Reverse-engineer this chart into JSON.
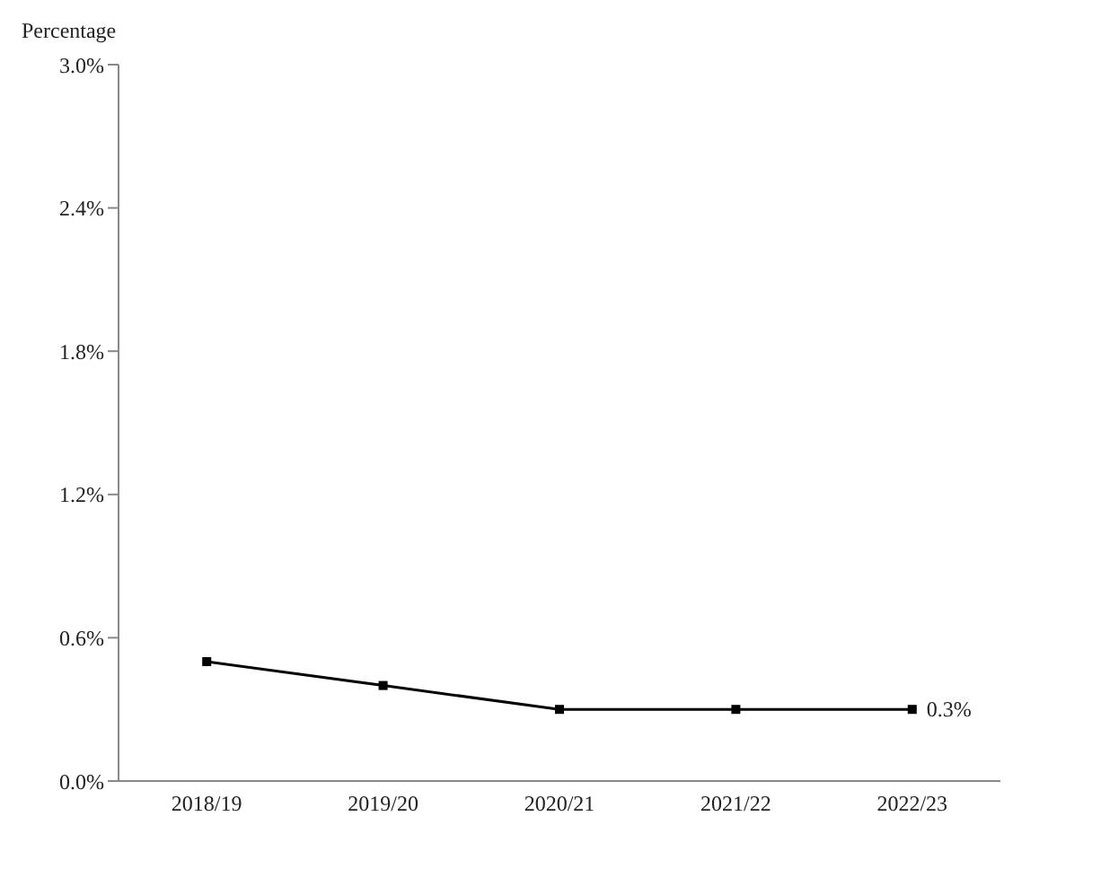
{
  "chart_data": {
    "type": "line",
    "ylabel": "Percentage",
    "categories": [
      "2018/19",
      "2019/20",
      "2020/21",
      "2021/22",
      "2022/23"
    ],
    "series": [
      {
        "color": "#000000",
        "values": [
          0.5,
          0.4,
          0.3,
          0.3,
          0.3
        ]
      }
    ],
    "ylim": [
      0,
      3
    ],
    "yticks": [
      {
        "value": 0,
        "label": "0.0%"
      },
      {
        "value": 0.6,
        "label": "0.6%"
      },
      {
        "value": 1.2,
        "label": "1.2%"
      },
      {
        "value": 1.8,
        "label": "1.8%"
      },
      {
        "value": 2.4,
        "label": "2.4%"
      },
      {
        "value": 3,
        "label": "3.0%"
      }
    ],
    "annotations": [
      {
        "text": "0.3%",
        "x": "2022/23",
        "y": 0.3
      }
    ],
    "marker": "square",
    "line_style": "solid",
    "grid": false,
    "legend": false
  }
}
